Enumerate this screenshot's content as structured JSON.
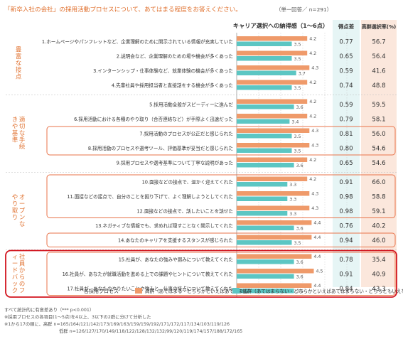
{
  "header": {
    "title": "「新卒入社の会社」の採用活動プロセスについて、あてはまる程度をお答えください。",
    "note": "（単一回答／ n=291）"
  },
  "columns": {
    "score_title": "キャリア選択への納得感（1〜6点）",
    "diff": "得点差",
    "high_rate": "高群選択率(%)"
  },
  "groups": [
    {
      "label": "豊富な接点",
      "items": [
        0,
        1,
        2,
        3
      ]
    },
    {
      "label": "適切な手続きや基準",
      "items": [
        4,
        5,
        6,
        7,
        8
      ]
    },
    {
      "label": "オープンなやり取り",
      "items": [
        9,
        10,
        11,
        12,
        13
      ]
    },
    {
      "label": "社員からのフィードバック",
      "items": [
        14,
        15,
        16
      ]
    }
  ],
  "chart_data": {
    "type": "bar",
    "orientation": "horizontal",
    "categories": [
      "1.ホームページやパンフレットなど、企業理解のために開示されている情報が充実していた",
      "2.説明会など、企業理解のための場や機会が多くあった",
      "3.インターンシップ・仕事体験など、就業体験の機会が多くあった",
      "4.先輩社員や採用担当者と直接話をする機会が多くあった",
      "5.採用活動全般がスピーディーに進んだ",
      "6.採用活動における各種のやり取り（合否連絡など）が手際よく迅速だった",
      "7.採用活動のプロセスが公正だと感じられた",
      "8.採用活動のプロセスや選考ツール、評価基準が妥当だと感じられた",
      "9.採用プロセスや選考基準について丁寧な説明があった",
      "10.面接などの接点で、温かく迎えてくれた",
      "11.面接などの接点で、自分のことを掘り下げて、よく理解しようとしてくれた",
      "12.面接などの接点で、話したいことを話せた",
      "13.ネガティブな情報でも、求めれば隠すことなく開示してくれた",
      "14.あなたのキャリアを支援するスタンスが感じられた",
      "15.社員が、あなたの強みや弱みについて教えてくれた",
      "16.社員が、あなたが就職活動を進める上での課題やヒントについて教えてくれた",
      "17.社員が、あなたのやりたいことや強みと、仕事の接点について教えてくれた"
    ],
    "series": [
      {
        "name": "高群（あてはまる・どちらかといえばあてはまる）",
        "color": "#ef9a6a",
        "values": [
          4.2,
          4.2,
          4.3,
          4.2,
          4.2,
          4.2,
          4.3,
          4.3,
          4.2,
          4.2,
          4.3,
          4.3,
          4.4,
          4.4,
          4.4,
          4.5,
          4.4
        ]
      },
      {
        "name": "低群（あてはまらない・どちらかといえばあてはまらない・どちらともいえない）",
        "color": "#5cc6c3",
        "values": [
          3.5,
          3.5,
          3.7,
          3.5,
          3.6,
          3.4,
          3.5,
          3.5,
          3.6,
          3.3,
          3.3,
          3.3,
          3.6,
          3.5,
          3.6,
          3.6,
          3.6
        ]
      }
    ],
    "diff": [
      0.77,
      0.65,
      0.59,
      0.74,
      0.59,
      0.79,
      0.81,
      0.8,
      0.65,
      0.91,
      0.98,
      0.98,
      0.76,
      0.94,
      0.78,
      0.91,
      0.84
    ],
    "high_rate": [
      56.7,
      56.4,
      41.6,
      48.8,
      59.5,
      58.1,
      56.0,
      54.6,
      54.6,
      66.0,
      58.8,
      59.1,
      40.2,
      46.0,
      35.4,
      40.9,
      43.3
    ],
    "xlim": [
      1,
      6
    ]
  },
  "highlighted_rows": [
    6,
    7,
    9,
    10,
    11,
    13,
    14,
    15,
    16
  ],
  "legend": {
    "title": "各採用プロセス",
    "high": "高群（あてはまる・どちらかといえばあてはまる）",
    "low": "低群（あてはまらない・どちらかといえばあてはまらない・どちらともいえない）"
  },
  "footnotes": [
    "すべて統計的に有意差あり（*** p<0.001）",
    "※採用プロセスの各項目(1〜5点)を4以上、3以下の2群に分けて分析した",
    "※1から17の順に、高群 n=165/164/121/142/173/169/163/159/159/192/171/172/117/134/103/119/126",
    "低群 n=126/127/170/149/118/122/128/132/132/99/120/119/174/157/188/172/165"
  ],
  "colors": {
    "accent": "#e0712f",
    "highlight": "#e8734a",
    "panel_diff": "#e6f5f5",
    "panel_rate": "#fbe7dc",
    "feedback_box": "#d2141e"
  }
}
